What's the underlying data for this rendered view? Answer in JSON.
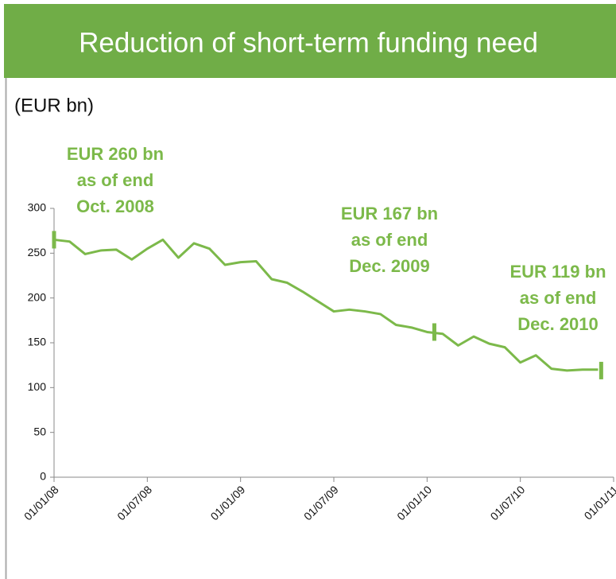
{
  "chart_data": {
    "type": "line",
    "title": "Reduction of short-term funding need",
    "subtitle": "(EUR bn)",
    "x": [
      "01/01/08",
      "01/02/08",
      "01/03/08",
      "01/04/08",
      "01/05/08",
      "01/06/08",
      "01/07/08",
      "01/08/08",
      "01/09/08",
      "01/10/08",
      "01/11/08",
      "01/12/08",
      "01/01/09",
      "01/02/09",
      "01/03/09",
      "01/04/09",
      "01/05/09",
      "01/06/09",
      "01/07/09",
      "01/08/09",
      "01/09/09",
      "01/10/09",
      "01/11/09",
      "01/12/09",
      "01/01/10",
      "01/02/10",
      "01/03/10",
      "01/04/10",
      "01/05/10",
      "01/06/10",
      "01/07/10",
      "01/08/10",
      "01/09/10",
      "01/10/10",
      "01/11/10",
      "01/12/10"
    ],
    "series": [
      {
        "name": "Short-term funding need",
        "color": "#7cb94a",
        "values": [
          265,
          263,
          249,
          253,
          254,
          243,
          255,
          265,
          245,
          261,
          255,
          237,
          240,
          241,
          221,
          217,
          207,
          196,
          185,
          187,
          185,
          182,
          170,
          167,
          162,
          160,
          147,
          157,
          149,
          145,
          128,
          136,
          121,
          119,
          120,
          120
        ]
      }
    ],
    "xticks": [
      "01/01/08",
      "01/07/08",
      "01/01/09",
      "01/07/09",
      "01/01/10",
      "01/07/10",
      "01/01/11"
    ],
    "xlim": [
      "01/01/08",
      "01/01/11"
    ],
    "ylim": [
      0,
      300
    ],
    "yticks": [
      0,
      50,
      100,
      150,
      200,
      250,
      300
    ],
    "markers": [
      {
        "x": "01/01/08",
        "value": 265
      },
      {
        "x": "15/01/10",
        "value": 162
      },
      {
        "x": "07/12/10",
        "value": 119
      }
    ],
    "annotations": [
      {
        "lines": [
          "EUR 260 bn",
          "as of end",
          "Oct. 2008"
        ]
      },
      {
        "lines": [
          "EUR 167 bn",
          "as of end",
          "Dec. 2009"
        ]
      },
      {
        "lines": [
          "EUR 119 bn",
          "as of end",
          "Dec. 2010"
        ]
      }
    ]
  }
}
